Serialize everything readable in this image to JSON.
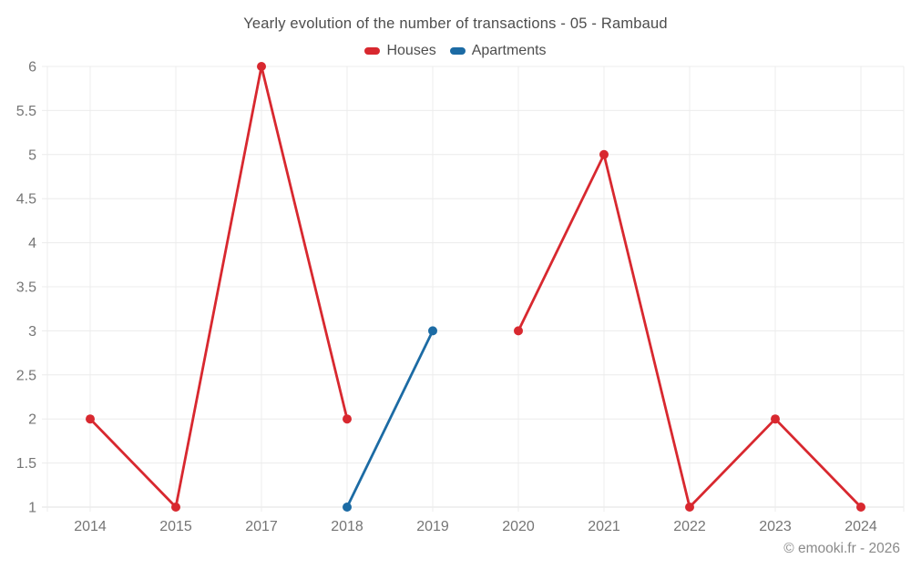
{
  "chart_data": {
    "type": "line",
    "title": "Yearly evolution of the number of transactions - 05 - Rambaud",
    "categories": [
      "2014",
      "2015",
      "2017",
      "2018",
      "2019",
      "2020",
      "2021",
      "2022",
      "2023",
      "2024"
    ],
    "series": [
      {
        "name": "Houses",
        "color": "#d8282f",
        "values": [
          2,
          1,
          6,
          2,
          null,
          3,
          5,
          1,
          2,
          1
        ]
      },
      {
        "name": "Apartments",
        "color": "#1c6ba4",
        "values": [
          null,
          null,
          null,
          1,
          3,
          null,
          null,
          null,
          null,
          null
        ]
      }
    ],
    "xlabel": "",
    "ylabel": "",
    "ylim": [
      1,
      6
    ],
    "ytick_step": 0.5,
    "yticks": [
      "1",
      "1.5",
      "2",
      "2.5",
      "3",
      "3.5",
      "4",
      "4.5",
      "5",
      "5.5",
      "6"
    ],
    "grid": true,
    "legend_position": "top",
    "axis_label_color": "#757575",
    "gridline_color": "#ececec",
    "axis_line_color": "#e0e0e0"
  },
  "footer": {
    "text": "© emooki.fr - 2026"
  }
}
